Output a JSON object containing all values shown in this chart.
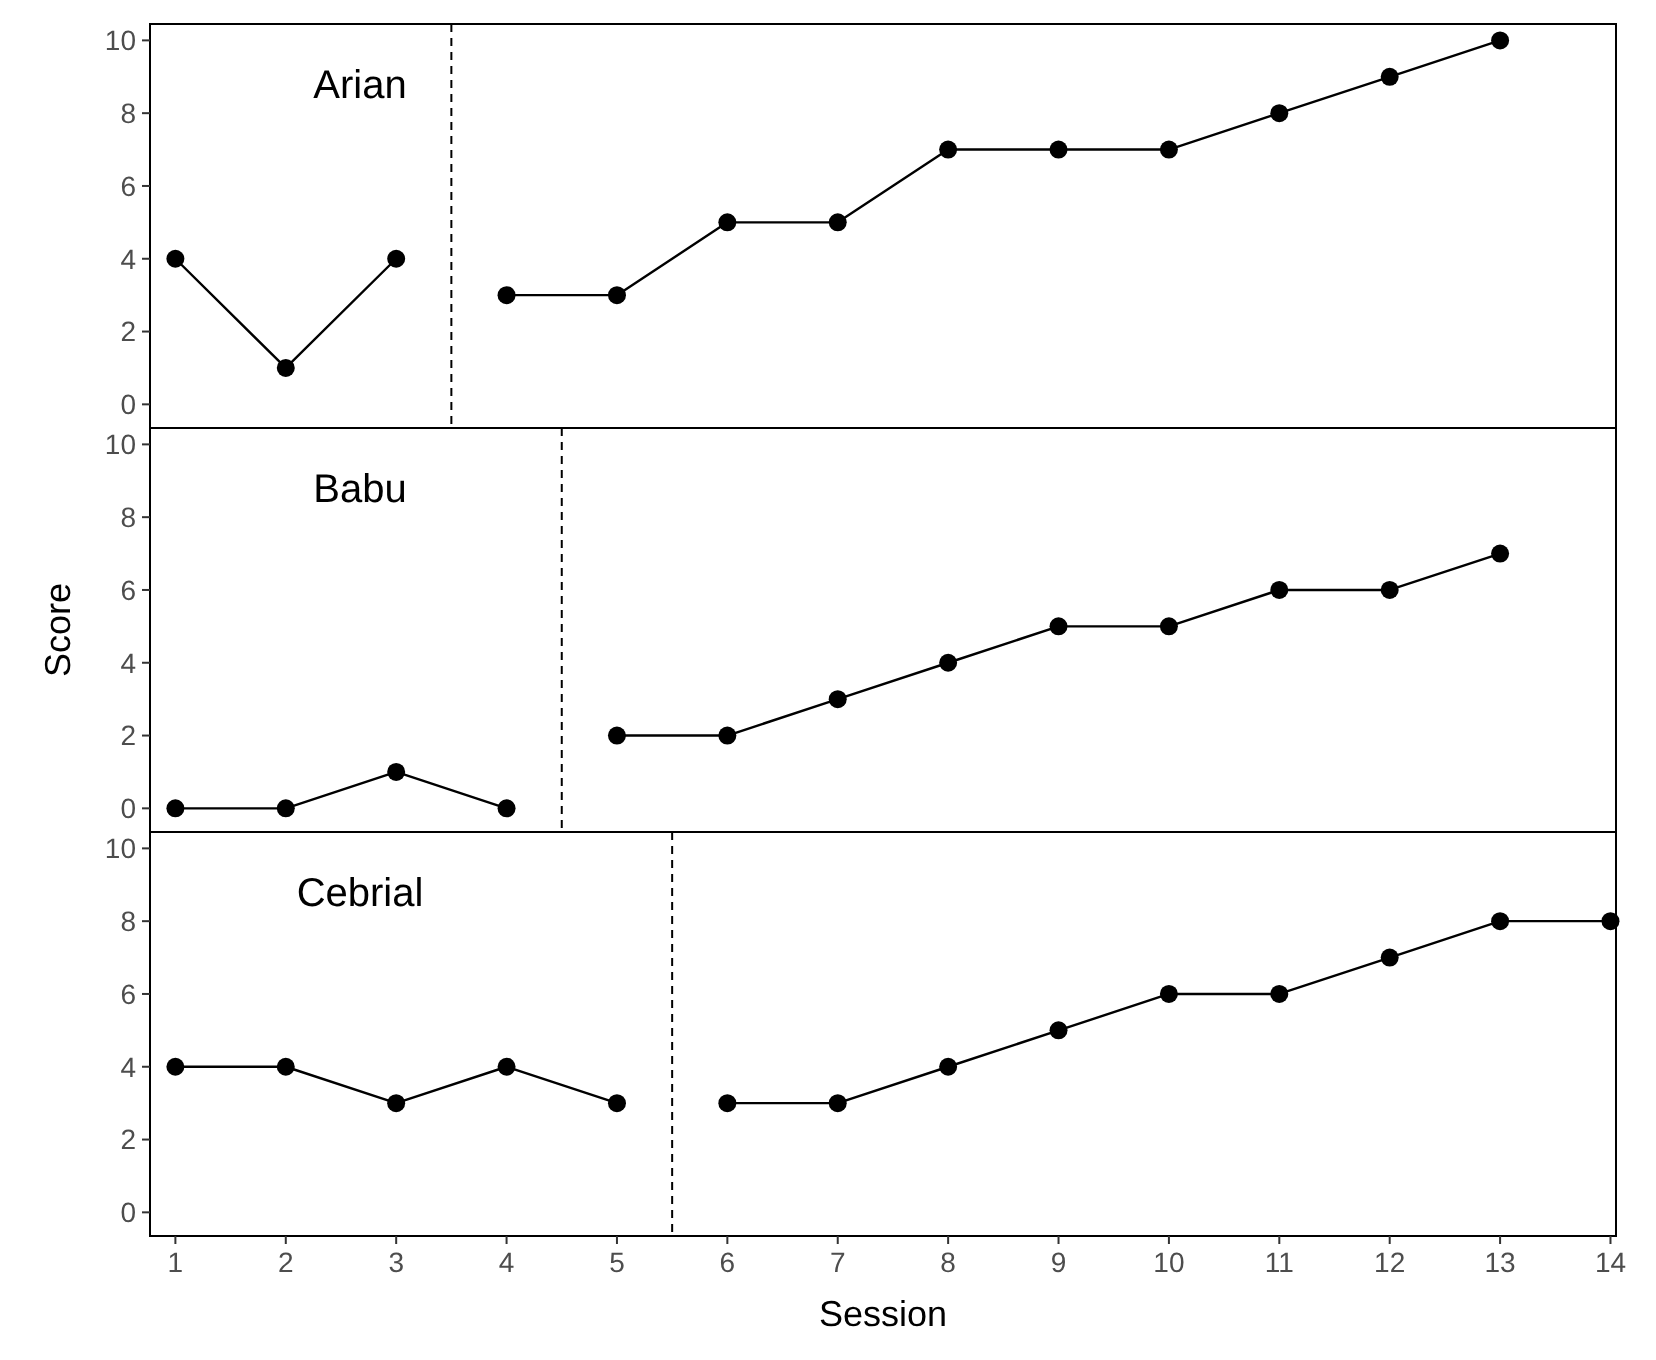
{
  "chart_data": [
    {
      "type": "line",
      "title": "Arian",
      "xlim": [
        0.77,
        14.05
      ],
      "ylim": [
        -0.65,
        10.45
      ],
      "yticks": [
        0,
        2,
        4,
        6,
        8,
        10
      ],
      "tick_labels": "y",
      "marker": "circle",
      "line_style": "solid",
      "ref_lines": [
        {
          "axis": "x",
          "value": 3.5,
          "line_style": "dashed",
          "color": "#000000"
        }
      ],
      "series": [
        {
          "color": "#000000",
          "x": [
            1,
            2,
            3
          ],
          "values": [
            4,
            1,
            4
          ]
        },
        {
          "color": "#000000",
          "x": [
            4,
            5,
            6,
            7,
            8,
            9,
            10,
            11,
            12,
            13
          ],
          "values": [
            3,
            3,
            5,
            5,
            7,
            7,
            7,
            8,
            9,
            10
          ]
        }
      ]
    },
    {
      "type": "line",
      "title": "Babu",
      "ylabel": "Score",
      "xlim": [
        0.77,
        14.05
      ],
      "ylim": [
        -0.65,
        10.45
      ],
      "yticks": [
        0,
        2,
        4,
        6,
        8,
        10
      ],
      "tick_labels": "y",
      "marker": "circle",
      "line_style": "solid",
      "ref_lines": [
        {
          "axis": "x",
          "value": 4.5,
          "line_style": "dashed",
          "color": "#000000"
        }
      ],
      "series": [
        {
          "color": "#000000",
          "x": [
            1,
            2,
            3,
            4
          ],
          "values": [
            0,
            0,
            1,
            0
          ]
        },
        {
          "color": "#000000",
          "x": [
            5,
            6,
            7,
            8,
            9,
            10,
            11,
            12,
            13
          ],
          "values": [
            2,
            2,
            3,
            4,
            5,
            5,
            6,
            6,
            7
          ]
        }
      ]
    },
    {
      "type": "line",
      "title": "Cebrial",
      "xlabel": "Session",
      "xlim": [
        0.77,
        14.05
      ],
      "xticks": [
        1,
        2,
        3,
        4,
        5,
        6,
        7,
        8,
        9,
        10,
        11,
        12,
        13,
        14
      ],
      "ylim": [
        -0.65,
        10.45
      ],
      "yticks": [
        0,
        2,
        4,
        6,
        8,
        10
      ],
      "marker": "circle",
      "line_style": "solid",
      "ref_lines": [
        {
          "axis": "x",
          "value": 5.5,
          "line_style": "dashed",
          "color": "#000000"
        }
      ],
      "series": [
        {
          "color": "#000000",
          "x": [
            1,
            2,
            3,
            4,
            5
          ],
          "values": [
            4,
            4,
            3,
            4,
            3
          ]
        },
        {
          "color": "#000000",
          "x": [
            6,
            7,
            8,
            9,
            10,
            11,
            12,
            13,
            14
          ],
          "values": [
            3,
            3,
            4,
            5,
            6,
            6,
            7,
            8,
            8
          ]
        }
      ]
    }
  ]
}
